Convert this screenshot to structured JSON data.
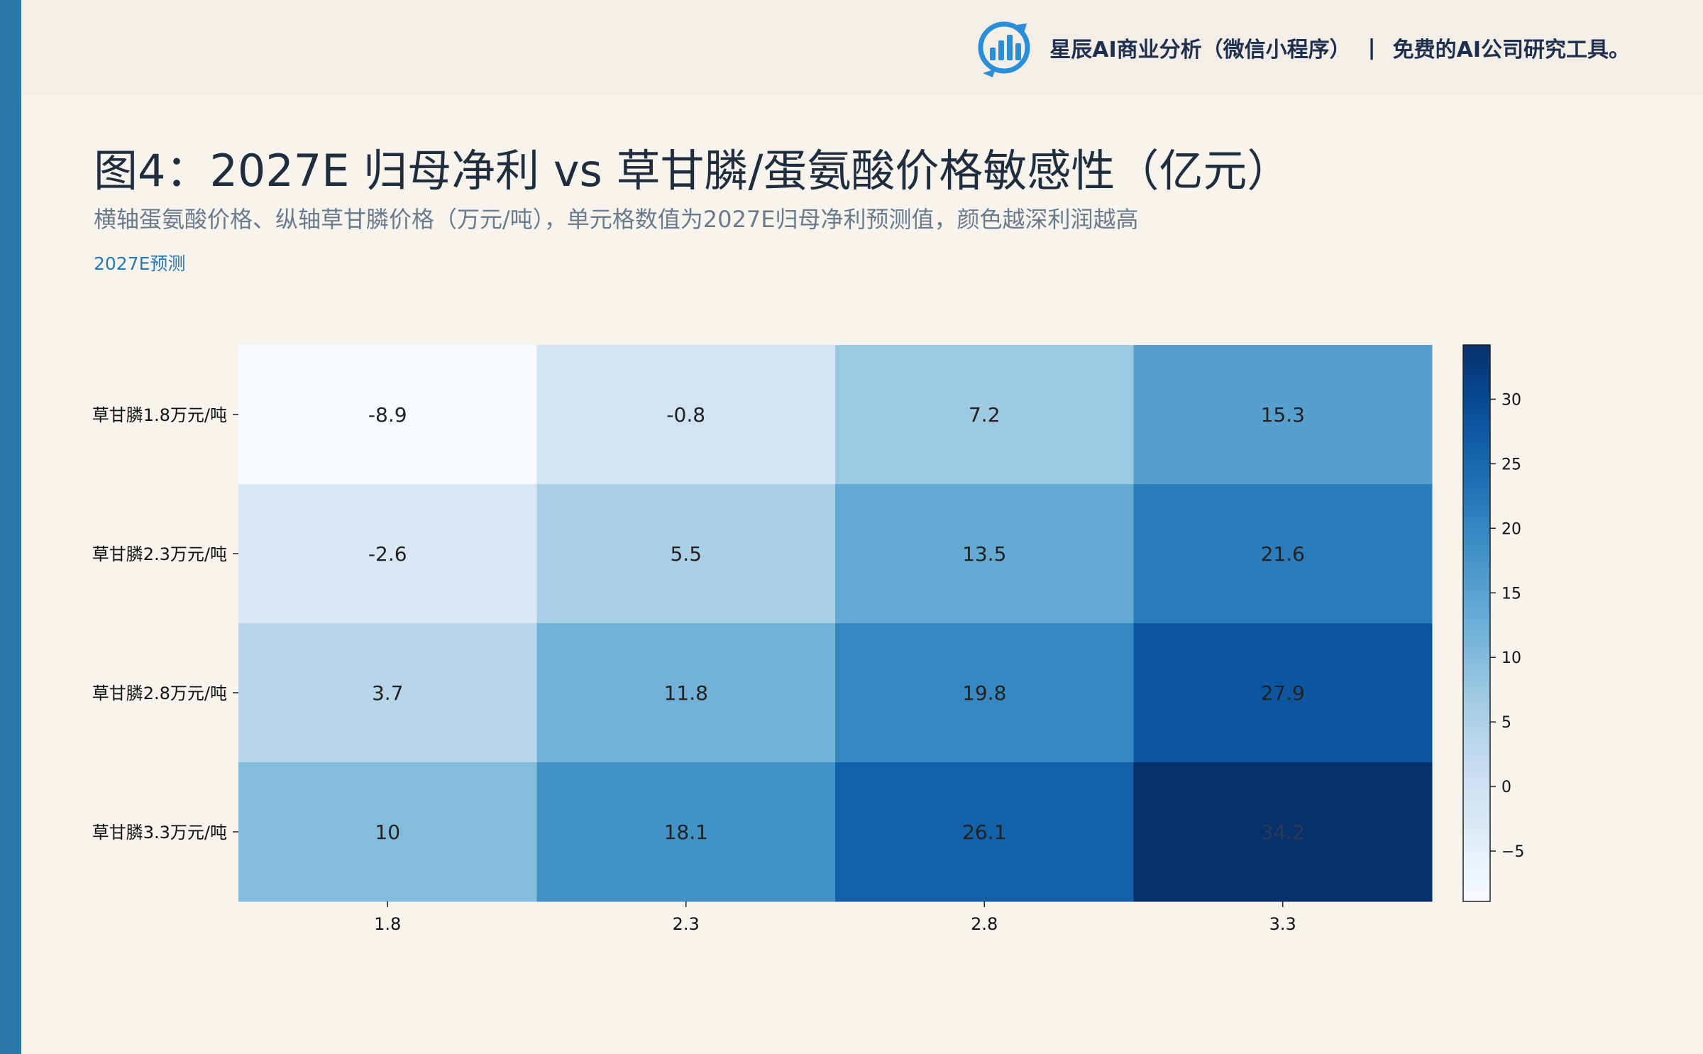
{
  "header": {
    "brand_text": "星辰AI商业分析（微信小程序）",
    "separator": "|",
    "brand_slogan": "免费的AI公司研究工具。",
    "logo_icon": "bar-chart-circle-logo-icon"
  },
  "title": "图4：2027E 归母净利 vs 草甘膦/蛋氨酸价格敏感性（亿元）",
  "subtitle": "横轴蛋氨酸价格、纵轴草甘膦价格（万元/吨），单元格数值为2027E归母净利预测值，颜色越深利润越高",
  "tag": "2027E预测",
  "colors": {
    "accent_bar": "#2a79a8",
    "brand_navy": "#1f2f4e",
    "tag_blue": "#2a79b0",
    "cmap": "Blues"
  },
  "chart_data": {
    "type": "heatmap",
    "title": "",
    "xlabel": "",
    "ylabel": "",
    "x_categories": [
      "1.8",
      "2.3",
      "2.8",
      "3.3"
    ],
    "y_categories": [
      "草甘膦1.8万元/吨",
      "草甘膦2.3万元/吨",
      "草甘膦2.8万元/吨",
      "草甘膦3.3万元/吨"
    ],
    "values": [
      [
        -8.9,
        -0.8,
        7.2,
        15.3
      ],
      [
        -2.6,
        5.5,
        13.5,
        21.6
      ],
      [
        3.7,
        11.8,
        19.8,
        27.9
      ],
      [
        10,
        18.1,
        26.1,
        34.2
      ]
    ],
    "cell_labels": [
      [
        "-8.9",
        "-0.8",
        "7.2",
        "15.3"
      ],
      [
        "-2.6",
        "5.5",
        "13.5",
        "21.6"
      ],
      [
        "3.7",
        "11.8",
        "19.8",
        "27.9"
      ],
      [
        "10",
        "18.1",
        "26.1",
        "34.2"
      ]
    ],
    "vmin": -8.9,
    "vmax": 34.2,
    "colorbar_ticks": [
      30,
      25,
      20,
      15,
      10,
      5,
      0,
      -5
    ],
    "colorbar_tick_labels": [
      "30",
      "25",
      "20",
      "15",
      "10",
      "5",
      "0",
      "−5"
    ],
    "grid": false
  }
}
